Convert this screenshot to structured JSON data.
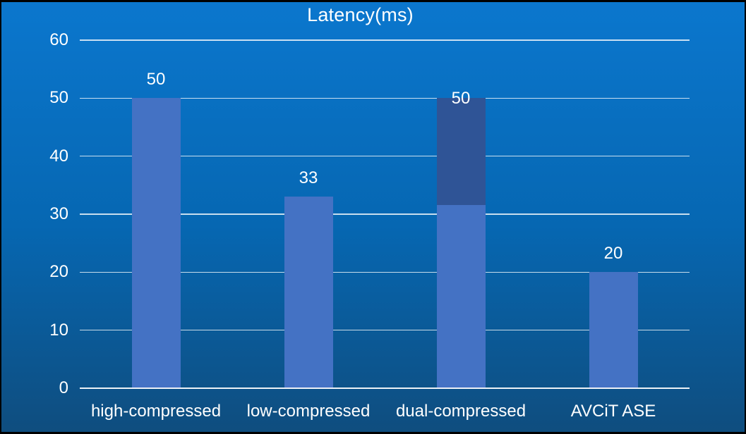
{
  "chart_data": {
    "type": "bar",
    "title": "Latency(ms)",
    "categories": [
      "high-compressed",
      "low-compressed",
      "dual-compressed",
      "AVCiT ASE"
    ],
    "stacked": true,
    "series": [
      {
        "name": "latency-lower-segment",
        "color": "#4472C4",
        "values": [
          50,
          33,
          31.6,
          20
        ]
      },
      {
        "name": "latency-upper-segment",
        "color": "#2F5496",
        "values": [
          0,
          0,
          18.4,
          0
        ]
      }
    ],
    "data_labels": [
      {
        "text": "50",
        "position": "above"
      },
      {
        "text": "33",
        "position": "above"
      },
      {
        "text": "50",
        "position": "top-edge"
      },
      {
        "text": "20",
        "position": "above"
      }
    ],
    "ylim": [
      0,
      60
    ],
    "yticks": [
      0,
      10,
      20,
      30,
      40,
      50,
      60
    ],
    "grid": true,
    "legend": "none"
  },
  "colors": {
    "bar_light": "#4472C4",
    "bar_dark": "#2F5496",
    "text": "#FFFFFF",
    "gridline": "#D9E2EB",
    "axis_line": "#EDF2F7",
    "background_top": "#0B77CE",
    "background_bottom": "#0F4D7E",
    "frame_border": "#000000"
  }
}
